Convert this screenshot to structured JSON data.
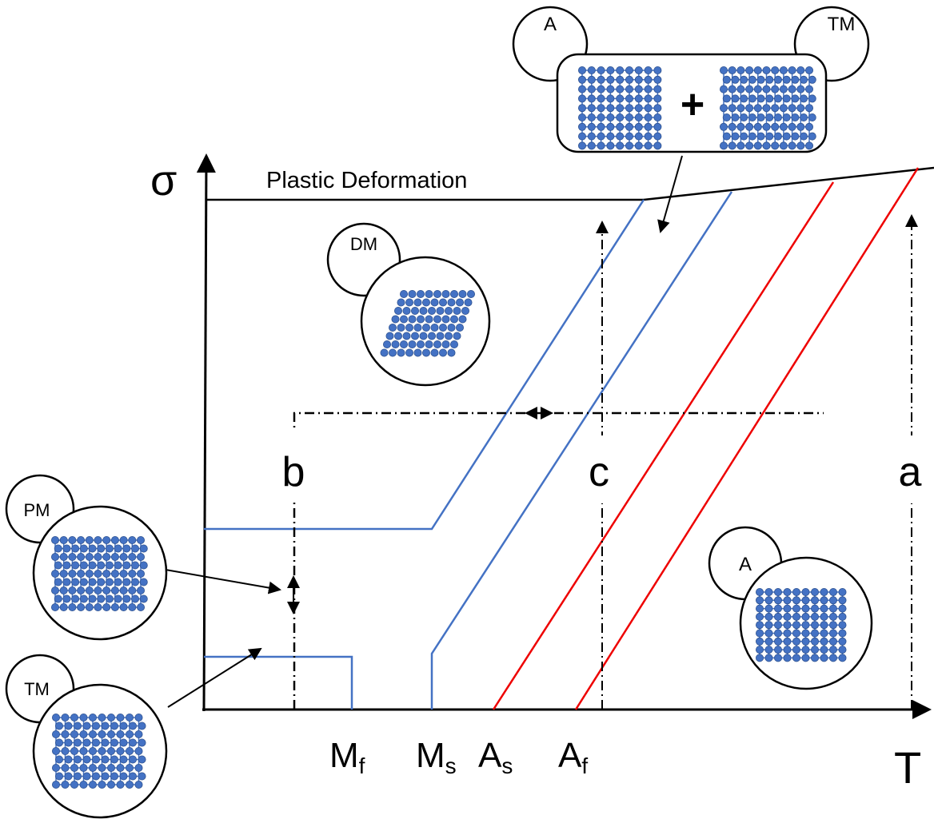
{
  "axes": {
    "y_label": "σ",
    "x_label": "T"
  },
  "region_label": "Plastic Deformation",
  "temperatures": [
    {
      "symbol": "M",
      "subscript": "f"
    },
    {
      "symbol": "M",
      "subscript": "s"
    },
    {
      "symbol": "A",
      "subscript": "s"
    },
    {
      "symbol": "A",
      "subscript": "f"
    }
  ],
  "paths": [
    "b",
    "c",
    "a"
  ],
  "phases": {
    "top_left": "A",
    "top_right": "TM",
    "plus": "+",
    "dm": "DM",
    "pm": "PM",
    "tm": "TM",
    "a": "A"
  }
}
